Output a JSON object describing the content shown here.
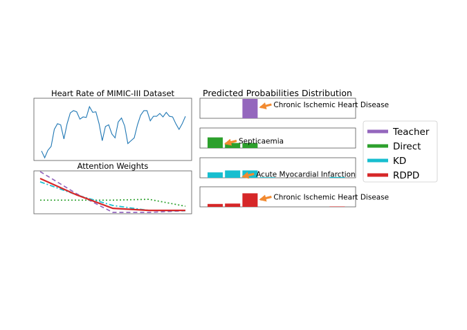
{
  "colors": {
    "teacher": "#9467bd",
    "direct": "#2ca02c",
    "kd": "#17becf",
    "rdpd": "#d62728",
    "heart_rate_line": "#1f77b4",
    "arrow": "#f28a30"
  },
  "legend": {
    "placement": "right",
    "entries": [
      "Teacher",
      "Direct",
      "KD",
      "RDPD"
    ]
  },
  "chart_data": [
    {
      "type": "line",
      "title": "Heart Rate of MIMIC-III Dataset",
      "xlabel": "",
      "ylabel": "",
      "ylim": [
        0,
        1
      ],
      "grid": false,
      "series": [
        {
          "values": [
            0.12,
            0.0,
            0.13,
            0.2,
            0.5,
            0.6,
            0.58,
            0.33,
            0.6,
            0.79,
            0.83,
            0.81,
            0.68,
            0.72,
            0.71,
            0.9,
            0.8,
            0.81,
            0.6,
            0.3,
            0.55,
            0.58,
            0.42,
            0.35,
            0.63,
            0.7,
            0.56,
            0.25,
            0.3,
            0.35,
            0.58,
            0.75,
            0.83,
            0.83,
            0.65,
            0.73,
            0.73,
            0.78,
            0.72,
            0.8,
            0.73,
            0.72,
            0.6,
            0.5,
            0.6,
            0.73
          ]
        }
      ]
    },
    {
      "type": "line",
      "title": "Attention Weights",
      "xlabel": "",
      "ylabel": "",
      "ylim": [
        0,
        1
      ],
      "grid": false,
      "x": [
        0,
        1,
        2,
        3,
        4
      ],
      "series": [
        {
          "key": "teacher",
          "style": "dashed",
          "values": [
            1.0,
            0.46,
            0.0,
            0.0,
            0.04
          ]
        },
        {
          "key": "direct",
          "style": "dotted",
          "values": [
            0.3,
            0.3,
            0.3,
            0.32,
            0.15
          ]
        },
        {
          "key": "kd",
          "style": "dashdot",
          "values": [
            0.75,
            0.43,
            0.17,
            0.05,
            0.04
          ]
        },
        {
          "key": "rdpd",
          "style": "solid",
          "values": [
            0.83,
            0.43,
            0.1,
            0.05,
            0.05
          ]
        }
      ]
    },
    {
      "type": "bar",
      "title": "Predicted Probabilities Distribution",
      "panels": [
        {
          "key": "teacher",
          "values": [
            0,
            0,
            1.0,
            0,
            0,
            0,
            0,
            0
          ],
          "arrow_to": 2,
          "annotation": "Chronic Ischemic Heart Disease"
        },
        {
          "key": "direct",
          "values": [
            0.55,
            0.26,
            0.26,
            0,
            0,
            0,
            0,
            0
          ],
          "arrow_to": 0,
          "annotation": "Septicaemia"
        },
        {
          "key": "kd",
          "values": [
            0.28,
            0.38,
            0.38,
            0.03,
            0,
            0,
            0,
            0.04
          ],
          "arrow_to": 1,
          "annotation": "Acute Myocardial Infarction"
        },
        {
          "key": "rdpd",
          "values": [
            0.15,
            0.17,
            0.7,
            0,
            0,
            0,
            0,
            0.02
          ],
          "arrow_to": 2,
          "annotation": "Chronic Ischemic Heart Disease"
        }
      ]
    }
  ]
}
